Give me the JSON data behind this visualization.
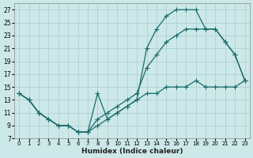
{
  "xlabel": "Humidex (Indice chaleur)",
  "bg_color": "#cce8e8",
  "grid_color": "#aacccc",
  "line_color": "#1a6b6b",
  "line1_x": [
    0,
    1,
    2,
    3,
    4,
    5,
    6,
    7,
    8,
    9,
    10,
    11,
    12,
    13,
    14,
    15,
    16,
    17,
    18,
    19,
    20,
    21,
    22,
    23
  ],
  "line1_y": [
    14,
    13,
    11,
    10,
    9,
    9,
    8,
    8,
    14,
    10,
    11,
    12,
    13,
    21,
    24,
    26,
    27,
    27,
    27,
    24,
    24,
    22,
    20,
    16
  ],
  "line2_x": [
    0,
    1,
    2,
    3,
    4,
    5,
    6,
    7,
    8,
    9,
    10,
    11,
    12,
    13,
    14,
    15,
    16,
    17,
    18,
    19,
    20,
    21,
    22,
    23
  ],
  "line2_y": [
    14,
    13,
    11,
    10,
    9,
    9,
    8,
    8,
    10,
    11,
    12,
    13,
    14,
    18,
    20,
    22,
    23,
    24,
    24,
    24,
    24,
    22,
    20,
    16
  ],
  "line3_x": [
    0,
    1,
    2,
    3,
    4,
    5,
    6,
    7,
    8,
    9,
    10,
    11,
    12,
    13,
    14,
    15,
    16,
    17,
    18,
    19,
    20,
    21,
    22,
    23
  ],
  "line3_y": [
    14,
    13,
    11,
    10,
    9,
    9,
    8,
    8,
    9,
    10,
    11,
    12,
    13,
    14,
    14,
    15,
    15,
    15,
    16,
    15,
    15,
    15,
    15,
    16
  ],
  "xlim": [
    -0.5,
    23.5
  ],
  "ylim": [
    7,
    28
  ],
  "xticks": [
    0,
    1,
    2,
    3,
    4,
    5,
    6,
    7,
    8,
    9,
    10,
    11,
    12,
    13,
    14,
    15,
    16,
    17,
    18,
    19,
    20,
    21,
    22,
    23
  ],
  "yticks": [
    7,
    9,
    11,
    13,
    15,
    17,
    19,
    21,
    23,
    25,
    27
  ]
}
